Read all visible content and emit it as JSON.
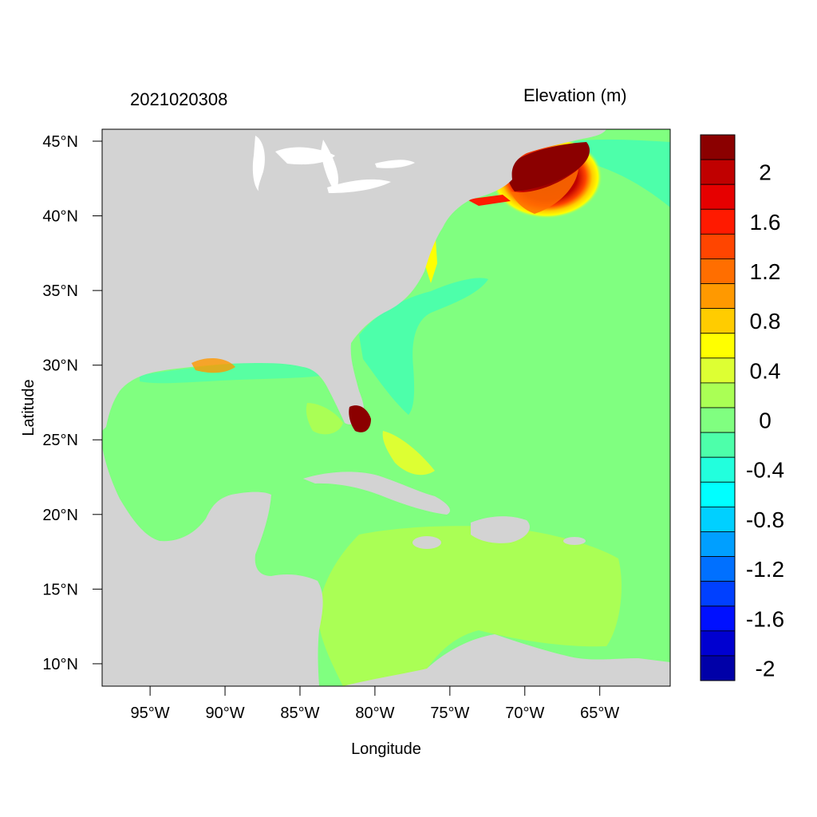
{
  "header": {
    "timestamp": "2021020308",
    "variable": "Elevation (m)"
  },
  "map": {
    "xlabel": "Longitude",
    "ylabel": "Latitude",
    "lon_range": [
      -98.2,
      -60.3
    ],
    "lat_range": [
      8.5,
      45.8
    ],
    "x_ticks": [
      "95°W",
      "90°W",
      "85°W",
      "80°W",
      "75°W",
      "70°W",
      "65°W"
    ],
    "y_ticks": [
      "45°N",
      "40°N",
      "35°N",
      "30°N",
      "25°N",
      "20°N",
      "15°N",
      "10°N"
    ],
    "land_color": "#d3d3d3",
    "ocean_base_color": "#80ff80"
  },
  "colorbar": {
    "colors": [
      "#8b0000",
      "#c00000",
      "#e60000",
      "#ff1a00",
      "#ff4500",
      "#ff6e00",
      "#ff9900",
      "#ffcc00",
      "#ffff00",
      "#ddff33",
      "#aaff55",
      "#80ff80",
      "#4dffaa",
      "#22ffdd",
      "#00ffff",
      "#00d0ff",
      "#009fff",
      "#0070ff",
      "#0040ff",
      "#0010ff",
      "#0000d0",
      "#0000a8"
    ],
    "labels": [
      "2",
      "1.6",
      "1.2",
      "0.8",
      "0.4",
      "0",
      "-0.4",
      "-0.8",
      "-1.2",
      "-1.6",
      "-2"
    ]
  }
}
